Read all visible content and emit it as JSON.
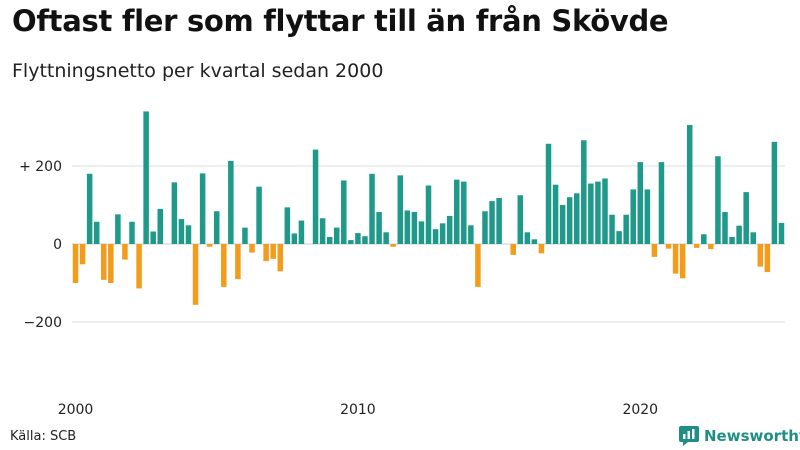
{
  "title": "Oftast fler som flyttar till än från Skövde",
  "subtitle": "Flyttningsnetto per kvartal sedan 2000",
  "source": "Källa: SCB",
  "brand": "Newsworthy",
  "colors": {
    "positive": "#1f9a8a",
    "negative": "#f39c1c",
    "grid": "#dddddd",
    "brand": "#1f8f86"
  },
  "icons": {
    "brand_logo": "bar-chart-speech-bubble-icon"
  },
  "chart_data": {
    "type": "bar",
    "ylim": [
      -300,
      340
    ],
    "grid": true,
    "y_ticks": [
      {
        "value": 200,
        "label": "+ 200"
      },
      {
        "value": 0,
        "label": "0"
      },
      {
        "value": -200,
        "label": "−200"
      }
    ],
    "x_ticks": [
      {
        "value": 2000,
        "label": "2000"
      },
      {
        "value": 2010,
        "label": "2010"
      },
      {
        "value": 2020,
        "label": "2020"
      }
    ],
    "start_year": 2000,
    "values": [
      -100,
      -52,
      180,
      57,
      -92,
      -100,
      76,
      -40,
      57,
      -114,
      340,
      32,
      90,
      0,
      158,
      64,
      48,
      -156,
      181,
      -7,
      84,
      -110,
      213,
      -90,
      42,
      -22,
      147,
      -44,
      -38,
      -70,
      94,
      27,
      60,
      0,
      242,
      66,
      18,
      42,
      163,
      10,
      28,
      20,
      180,
      82,
      30,
      -7,
      176,
      86,
      82,
      58,
      150,
      38,
      53,
      72,
      165,
      160,
      48,
      -110,
      84,
      110,
      118,
      0,
      -28,
      125,
      30,
      12,
      -24,
      257,
      152,
      100,
      120,
      130,
      266,
      155,
      160,
      168,
      75,
      33,
      75,
      140,
      210,
      140,
      -33,
      210,
      -12,
      -76,
      -88,
      305,
      -10,
      25,
      -13,
      225,
      82,
      18,
      47,
      133,
      30,
      -58,
      -72,
      262,
      54
    ]
  }
}
